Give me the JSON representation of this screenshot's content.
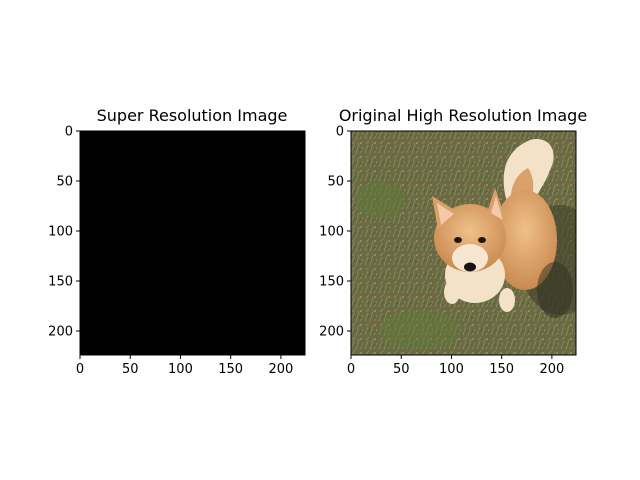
{
  "chart_data": [
    {
      "type": "image",
      "title": "Super Resolution Image",
      "content": "solid black",
      "image_color": "#000000",
      "xlim": [
        0,
        224
      ],
      "ylim": [
        224,
        0
      ],
      "xticks": [
        0,
        50,
        100,
        150,
        200
      ],
      "yticks": [
        0,
        50,
        100,
        150,
        200
      ],
      "xtick_labels": [
        "0",
        "50",
        "100",
        "150",
        "200"
      ],
      "ytick_labels": [
        "0",
        "50",
        "100",
        "150",
        "200"
      ]
    },
    {
      "type": "image",
      "title": "Original High Resolution Image",
      "content": "photo of a corgi dog sitting on grass",
      "colors": {
        "grass": "#6b6a45",
        "fur": "#d9a06a",
        "fur_light": "#f3e1c8",
        "shadow": "#3a3a28"
      },
      "xlim": [
        0,
        224
      ],
      "ylim": [
        224,
        0
      ],
      "xticks": [
        0,
        50,
        100,
        150,
        200
      ],
      "yticks": [
        0,
        50,
        100,
        150,
        200
      ],
      "xtick_labels": [
        "0",
        "50",
        "100",
        "150",
        "200"
      ],
      "ytick_labels": [
        "0",
        "50",
        "100",
        "150",
        "200"
      ]
    }
  ]
}
